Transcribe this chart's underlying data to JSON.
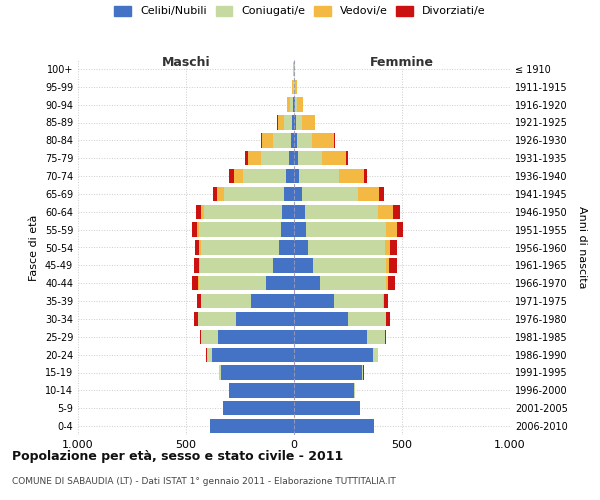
{
  "age_groups": [
    "0-4",
    "5-9",
    "10-14",
    "15-19",
    "20-24",
    "25-29",
    "30-34",
    "35-39",
    "40-44",
    "45-49",
    "50-54",
    "55-59",
    "60-64",
    "65-69",
    "70-74",
    "75-79",
    "80-84",
    "85-89",
    "90-94",
    "95-99",
    "100+"
  ],
  "birth_years": [
    "2006-2010",
    "2001-2005",
    "1996-2000",
    "1991-1995",
    "1986-1990",
    "1981-1985",
    "1976-1980",
    "1971-1975",
    "1966-1970",
    "1961-1965",
    "1956-1960",
    "1951-1955",
    "1946-1950",
    "1941-1945",
    "1936-1940",
    "1931-1935",
    "1926-1930",
    "1921-1925",
    "1916-1920",
    "1911-1915",
    "≤ 1910"
  ],
  "male_celibe": [
    390,
    330,
    300,
    340,
    380,
    350,
    270,
    200,
    130,
    95,
    70,
    60,
    55,
    45,
    35,
    25,
    15,
    10,
    5,
    2,
    2
  ],
  "male_coniugato": [
    0,
    1,
    2,
    8,
    25,
    80,
    175,
    230,
    310,
    340,
    360,
    380,
    360,
    280,
    200,
    130,
    80,
    35,
    15,
    3,
    1
  ],
  "male_vedovo": [
    0,
    0,
    0,
    0,
    0,
    1,
    1,
    2,
    3,
    5,
    8,
    10,
    15,
    30,
    45,
    60,
    55,
    30,
    12,
    3,
    1
  ],
  "male_divorziato": [
    0,
    0,
    0,
    1,
    2,
    5,
    15,
    18,
    30,
    25,
    20,
    22,
    25,
    20,
    20,
    10,
    5,
    2,
    0,
    0,
    0
  ],
  "female_celibe": [
    370,
    305,
    280,
    315,
    365,
    340,
    250,
    185,
    120,
    90,
    65,
    55,
    50,
    35,
    25,
    20,
    15,
    10,
    5,
    2,
    2
  ],
  "female_coniugato": [
    0,
    1,
    2,
    6,
    22,
    80,
    175,
    225,
    305,
    335,
    355,
    370,
    340,
    260,
    185,
    110,
    70,
    25,
    10,
    3,
    1
  ],
  "female_vedovo": [
    0,
    0,
    0,
    0,
    1,
    2,
    3,
    5,
    8,
    15,
    25,
    50,
    70,
    100,
    115,
    110,
    100,
    60,
    25,
    8,
    2
  ],
  "female_divorziato": [
    0,
    0,
    0,
    1,
    2,
    5,
    15,
    20,
    35,
    35,
    30,
    30,
    30,
    20,
    15,
    8,
    5,
    3,
    1,
    0,
    0
  ],
  "color_celibe": "#4472c4",
  "color_coniugato": "#c5d9a0",
  "color_vedovo": "#f4b942",
  "color_divorziato": "#cc1111",
  "title": "Popolazione per età, sesso e stato civile - 2011",
  "subtitle": "COMUNE DI SABAUDIA (LT) - Dati ISTAT 1° gennaio 2011 - Elaborazione TUTTITALIA.IT",
  "xlabel_left": "Maschi",
  "xlabel_right": "Femmine",
  "ylabel_left": "Fasce di età",
  "ylabel_right": "Anni di nascita",
  "xlim": 1000,
  "background_color": "#ffffff",
  "grid_color": "#cccccc"
}
